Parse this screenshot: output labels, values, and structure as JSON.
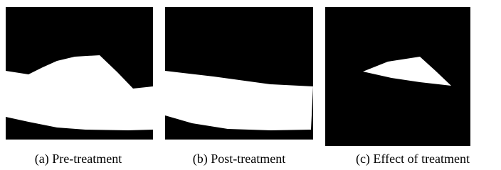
{
  "figure": {
    "panels": [
      {
        "caption": "(a) Pre-treatment"
      },
      {
        "caption": "(b) Post-treatment"
      },
      {
        "caption": "(c) Effect of treatment"
      }
    ]
  }
}
